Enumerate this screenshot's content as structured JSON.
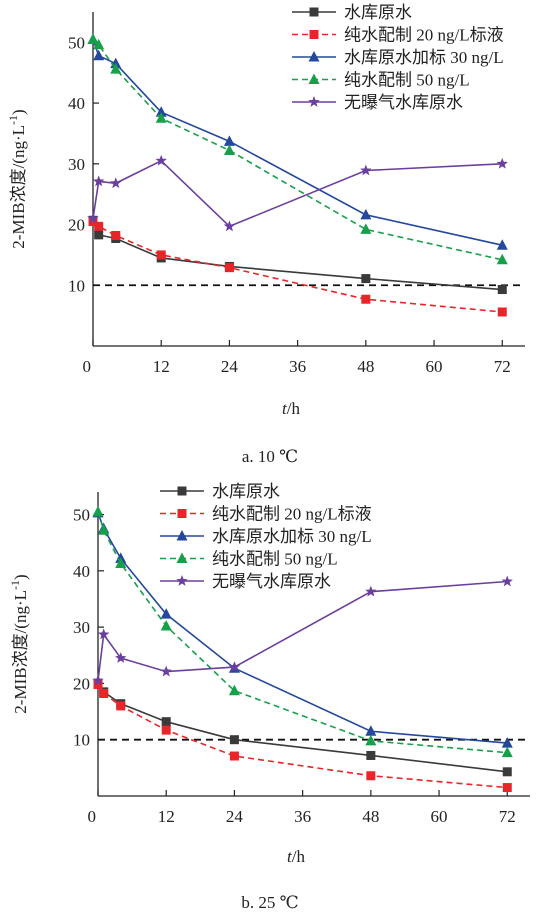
{
  "chart_data": [
    {
      "type": "line",
      "caption": "a. 10 ℃",
      "xlabel_var": "t",
      "xlabel_unit": "/h",
      "ylabel": "2-MIB浓度/(ng·L",
      "ylabel_sup": "-1",
      "ylabel_close": ")",
      "xlim": [
        0,
        76
      ],
      "ylim": [
        0,
        55
      ],
      "xticks": [
        0,
        12,
        24,
        36,
        48,
        60,
        72
      ],
      "yticks": [
        10,
        20,
        30,
        40,
        50
      ],
      "threshold": 10,
      "legend_position": "top-right",
      "series": [
        {
          "name": "水库原水",
          "color": "#3a3a3a",
          "dashed": false,
          "marker": "square",
          "x": [
            0,
            1,
            4,
            12,
            24,
            48,
            72
          ],
          "y": [
            20.7,
            18.3,
            17.7,
            14.5,
            13.1,
            11.1,
            9.3
          ]
        },
        {
          "name": "纯水配制 20 ng/L标液",
          "color": "#e8262a",
          "dashed": true,
          "marker": "square",
          "x": [
            0,
            1,
            4,
            12,
            24,
            48,
            72
          ],
          "y": [
            20.5,
            19.7,
            18.2,
            15.0,
            12.9,
            7.7,
            5.6
          ]
        },
        {
          "name": "水库原水加标 30 ng/L",
          "color": "#23489c",
          "dashed": false,
          "marker": "triangle",
          "x": [
            0,
            1,
            4,
            12,
            24,
            48,
            72
          ],
          "y": [
            50.5,
            47.8,
            46.5,
            38.5,
            33.7,
            21.6,
            16.6
          ]
        },
        {
          "name": "纯水配制 50 ng/L",
          "color": "#16a04a",
          "dashed": true,
          "marker": "triangle",
          "x": [
            0,
            1,
            4,
            12,
            24,
            48,
            72
          ],
          "y": [
            50.5,
            49.6,
            45.6,
            37.5,
            32.2,
            19.2,
            14.2
          ]
        },
        {
          "name": "无曝气水库原水",
          "color": "#6a3f9f",
          "dashed": false,
          "marker": "star",
          "x": [
            0,
            1,
            4,
            12,
            24,
            48,
            72
          ],
          "y": [
            21.0,
            27.1,
            26.8,
            30.5,
            19.7,
            28.9,
            30.0
          ]
        }
      ]
    },
    {
      "type": "line",
      "caption": "b. 25 ℃",
      "xlabel_var": "t",
      "xlabel_unit": "/h",
      "ylabel": "2-MIB浓度/(ng·L",
      "ylabel_sup": "-1",
      "ylabel_close": ")",
      "xlim": [
        0,
        76
      ],
      "ylim": [
        0,
        54
      ],
      "xticks": [
        0,
        12,
        24,
        36,
        48,
        60,
        72
      ],
      "yticks": [
        10,
        20,
        30,
        40,
        50
      ],
      "threshold": 10,
      "legend_position": "top-right",
      "series": [
        {
          "name": "水库原水",
          "color": "#3a3a3a",
          "dashed": false,
          "marker": "square",
          "x": [
            0,
            1,
            4,
            12,
            24,
            48,
            72
          ],
          "y": [
            20.0,
            18.5,
            16.4,
            13.2,
            10.0,
            7.2,
            4.3
          ]
        },
        {
          "name": "纯水配制 20 ng/L标液",
          "color": "#e8262a",
          "dashed": true,
          "marker": "square",
          "x": [
            0,
            1,
            4,
            12,
            24,
            48,
            72
          ],
          "y": [
            19.8,
            18.2,
            16.0,
            11.7,
            7.1,
            3.6,
            1.5
          ]
        },
        {
          "name": "水库原水加标 30 ng/L",
          "color": "#23489c",
          "dashed": false,
          "marker": "triangle",
          "x": [
            0,
            1,
            4,
            12,
            24,
            48,
            72
          ],
          "y": [
            50.3,
            47.5,
            42.2,
            32.3,
            22.7,
            11.5,
            9.4
          ]
        },
        {
          "name": "纯水配制 50 ng/L",
          "color": "#16a04a",
          "dashed": true,
          "marker": "triangle",
          "x": [
            0,
            1,
            4,
            12,
            24,
            48,
            72
          ],
          "y": [
            50.5,
            47.2,
            41.3,
            30.2,
            18.7,
            9.8,
            7.7
          ]
        },
        {
          "name": "无曝气水库原水",
          "color": "#6a3f9f",
          "dashed": false,
          "marker": "star",
          "x": [
            0,
            1,
            4,
            12,
            24,
            48,
            72
          ],
          "y": [
            20.5,
            28.7,
            24.5,
            22.1,
            22.9,
            36.3,
            38.1
          ]
        }
      ]
    }
  ]
}
